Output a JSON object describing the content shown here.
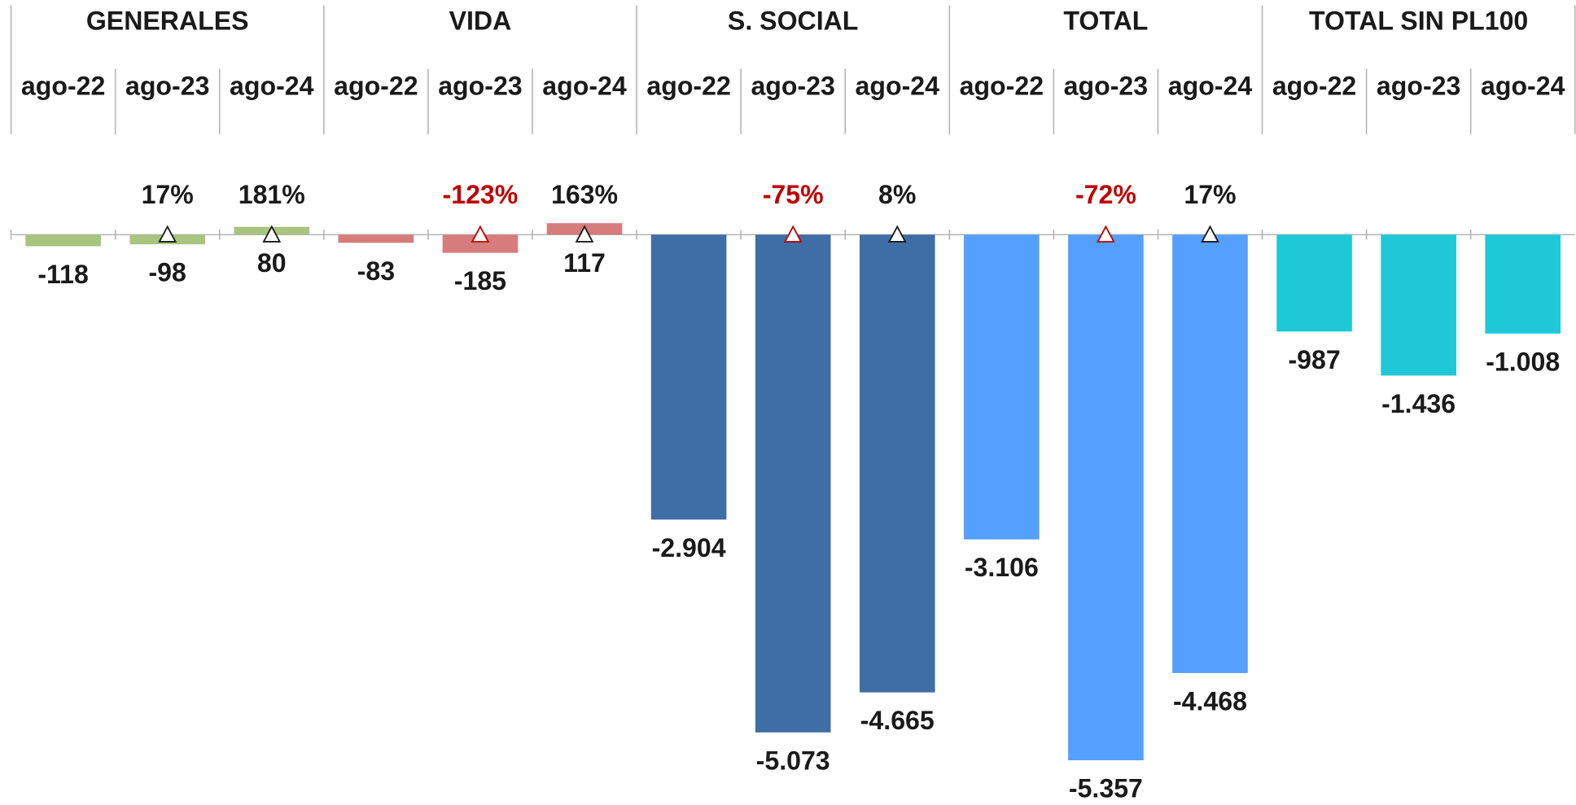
{
  "chart_data": {
    "type": "bar",
    "change_colors": {
      "up": "#1a1a1a",
      "down": "#c00000"
    },
    "groups": [
      {
        "name": "GENERALES",
        "color": "#a9c47f",
        "categories": [
          "ago-22",
          "ago-23",
          "ago-24"
        ],
        "values": [
          -118,
          -98,
          80
        ],
        "value_labels": [
          "-118",
          "-98",
          "80"
        ],
        "changes": [
          null,
          17,
          181
        ],
        "change_labels": [
          null,
          "17%",
          "181%"
        ]
      },
      {
        "name": "VIDA",
        "color": "#d67c7c",
        "categories": [
          "ago-22",
          "ago-23",
          "ago-24"
        ],
        "values": [
          -83,
          -185,
          117
        ],
        "value_labels": [
          "-83",
          "-185",
          "117"
        ],
        "changes": [
          null,
          -123,
          163
        ],
        "change_labels": [
          null,
          "-123%",
          "163%"
        ]
      },
      {
        "name": "S. SOCIAL",
        "color": "#3f6ea6",
        "categories": [
          "ago-22",
          "ago-23",
          "ago-24"
        ],
        "values": [
          -2904,
          -5073,
          -4665
        ],
        "value_labels": [
          "-2.904",
          "-5.073",
          "-4.665"
        ],
        "changes": [
          null,
          -75,
          8
        ],
        "change_labels": [
          null,
          "-75%",
          "8%"
        ]
      },
      {
        "name": "TOTAL",
        "color": "#559ffe",
        "categories": [
          "ago-22",
          "ago-23",
          "ago-24"
        ],
        "values": [
          -3106,
          -5357,
          -4468
        ],
        "value_labels": [
          "-3.106",
          "-5.357",
          "-4.468"
        ],
        "changes": [
          null,
          -72,
          17
        ],
        "change_labels": [
          null,
          "-72%",
          "17%"
        ]
      },
      {
        "name": "TOTAL SIN PL100",
        "color": "#1fc8d6",
        "categories": [
          "ago-22",
          "ago-23",
          "ago-24"
        ],
        "values": [
          -987,
          -1436,
          -1008
        ],
        "value_labels": [
          "-987",
          "-1.436",
          "-1.008"
        ],
        "changes": [
          null,
          null,
          null
        ],
        "change_labels": [
          null,
          null,
          null
        ]
      }
    ]
  }
}
